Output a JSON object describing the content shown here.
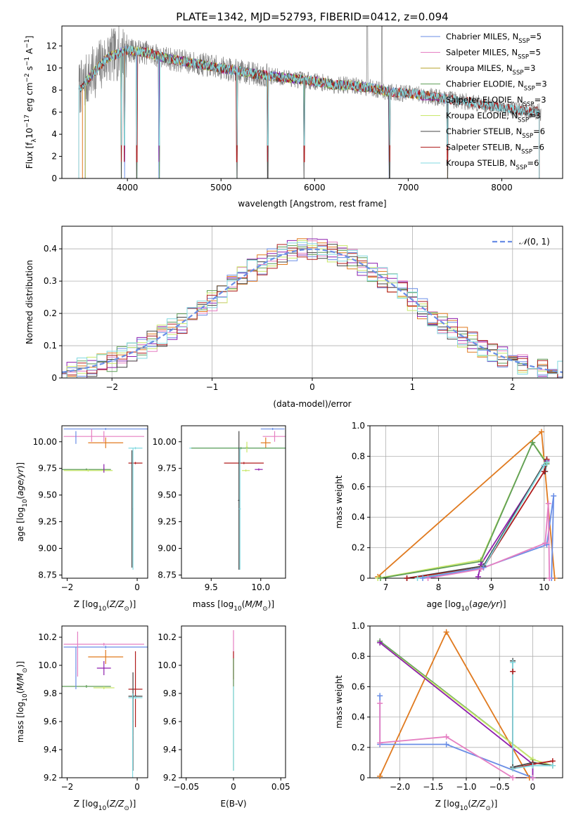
{
  "figure": {
    "title": "PLATE=1342, MJD=52793, FIBERID=0412, z=0.094"
  },
  "colors": {
    "Chabrier MILES": "#6a8ee6",
    "Salpeter MILES": "#e57fc2",
    "Kroupa MILES": "#b5a12a",
    "Chabrier ELODIE": "#5f9e58",
    "Salpeter ELODIE": "#8e1fae",
    "Kroupa ELODIE": "#c9e86a",
    "Chabrier STELIB": "#444444",
    "Salpeter STELIB": "#b01d1d",
    "Kroupa STELIB": "#82d9e0",
    "orange": "#e07a1f",
    "spectrum": "#808080"
  },
  "chart_data": [
    {
      "id": "spectrum",
      "type": "line",
      "xlabel": "wavelength [Angstrom, rest frame]",
      "ylabel": "Flux [f_λ 10^-17 erg cm^-2 s^-1 A^-1]",
      "xlim": [
        3300,
        8650
      ],
      "ylim": [
        0,
        13.8
      ],
      "xticks": [
        4000,
        5000,
        6000,
        7000,
        8000
      ],
      "yticks": [
        0,
        2,
        4,
        6,
        8,
        10,
        12
      ],
      "grid": false,
      "legend_position": "top-right",
      "legend": [
        "Chabrier MILES, N_SSP=5",
        "Salpeter MILES, N_SSP=5",
        "Kroupa MILES, N_SSP=3",
        "Chabrier ELODIE, N_SSP=3",
        "Salpeter ELODIE, N_SSP=3",
        "Kroupa ELODIE, N_SSP=3",
        "Chabrier STELIB, N_SSP=6",
        "Salpeter STELIB, N_SSP=6",
        "Kroupa STELIB, N_SSP=6"
      ],
      "continuum_x": [
        3500,
        3600,
        3700,
        3800,
        4000,
        4200,
        4400,
        4600,
        4800,
        5000,
        5200,
        5400,
        5600,
        5800,
        6000,
        6200,
        6400,
        6600,
        6800,
        7000,
        7200,
        7400,
        7600,
        7800,
        8000,
        8200,
        8400
      ],
      "continuum_y": [
        8.2,
        9.2,
        10.2,
        11.0,
        11.6,
        11.4,
        10.9,
        10.6,
        10.3,
        10.0,
        9.7,
        9.4,
        9.2,
        9.0,
        8.8,
        8.5,
        8.4,
        8.2,
        7.8,
        7.7,
        7.5,
        7.2,
        7.0,
        6.7,
        6.4,
        6.2,
        6.0
      ]
    },
    {
      "id": "residual_histogram",
      "type": "bar",
      "xlabel": "(data-model)/error",
      "ylabel": "Normed distribution",
      "xlim": [
        -2.5,
        2.5
      ],
      "ylim": [
        0,
        0.47
      ],
      "xticks": [
        -2,
        -1,
        0,
        1,
        2
      ],
      "yticks": [
        0.0,
        0.1,
        0.2,
        0.3,
        0.4
      ],
      "grid": true,
      "legend_position": "top-right",
      "gaussian_label": "N(0,1)",
      "bin_width": 0.1
    },
    {
      "id": "age_vs_Z",
      "type": "scatter",
      "xlabel": "Z [log10(Z/Z⊙)]",
      "ylabel": "age [log10(age/yr)]",
      "xlim": [
        -2.15,
        0.3
      ],
      "ylim": [
        8.72,
        10.15
      ],
      "xticks": [
        -2,
        0
      ],
      "yticks": [
        8.75,
        9.0,
        9.25,
        9.5,
        9.75,
        10.0
      ],
      "points": [
        {
          "c": "Chabrier MILES",
          "x": -0.9,
          "xe": 1.2,
          "y": 10.12,
          "ye": 0.01
        },
        {
          "c": "Salpeter MILES",
          "x": -0.95,
          "xe": 1.15,
          "y": 10.05,
          "ye": 0.05
        },
        {
          "c": "orange",
          "x": -0.9,
          "xe": 0.5,
          "y": 9.99,
          "ye": 0.05
        },
        {
          "c": "Kroupa STELIB",
          "x": -0.05,
          "xe": 0.2,
          "y": 9.94,
          "ye": 0.01
        },
        {
          "c": "Salpeter STELIB",
          "x": -0.05,
          "xe": 0.2,
          "y": 9.8,
          "ye": 0.01
        },
        {
          "c": "Chabrier ELODIE",
          "x": -1.45,
          "xe": 0.7,
          "y": 9.74,
          "ye": 0.01
        },
        {
          "c": "Kroupa ELODIE",
          "x": -1.4,
          "xe": 0.7,
          "y": 9.73,
          "ye": 0.01
        },
        {
          "c": "Chabrier STELIB",
          "x": -0.15,
          "xe": 0.01,
          "y": 9.37,
          "ye": 0.55
        },
        {
          "c": "Kroupa STELIB",
          "x": -0.12,
          "xe": 0.01,
          "y": 9.37,
          "ye": 0.57
        },
        {
          "c": "Salpeter ELODIE",
          "x": -0.95,
          "xe": 0.01,
          "y": 9.75,
          "ye": 0.04
        },
        {
          "c": "Chabrier MILES",
          "x": -1.75,
          "xe": 0.01,
          "y": 10.04,
          "ye": 0.06
        },
        {
          "c": "Salpeter MILES",
          "x": -1.3,
          "xe": 0.01,
          "y": 10.06,
          "ye": 0.06
        }
      ]
    },
    {
      "id": "age_vs_mass",
      "type": "scatter",
      "xlabel": "mass [log10(M/M⊙)]",
      "ylabel": "",
      "xlim": [
        9.2,
        10.25
      ],
      "ylim": [
        8.72,
        10.15
      ],
      "xticks": [
        9.5,
        10.0
      ],
      "yticks": [
        8.75,
        9.0,
        9.25,
        9.5,
        9.75,
        10.0
      ],
      "points": [
        {
          "c": "Chabrier MILES",
          "x": 10.12,
          "xe": 0.12,
          "y": 10.12,
          "ye": 0.01
        },
        {
          "c": "Salpeter MILES",
          "x": 10.14,
          "xe": 0.12,
          "y": 10.05,
          "ye": 0.05
        },
        {
          "c": "orange",
          "x": 10.05,
          "xe": 0.05,
          "y": 9.99,
          "ye": 0.05
        },
        {
          "c": "Kroupa STELIB",
          "x": 9.78,
          "xe": 0.5,
          "y": 9.94,
          "ye": 0.01
        },
        {
          "c": "Chabrier ELODIE",
          "x": 9.8,
          "xe": 0.5,
          "y": 9.94,
          "ye": 0.01
        },
        {
          "c": "Salpeter STELIB",
          "x": 9.83,
          "xe": 0.2,
          "y": 9.8,
          "ye": 0.01
        },
        {
          "c": "Kroupa ELODIE",
          "x": 9.85,
          "xe": 0.04,
          "y": 9.73,
          "ye": 0.01
        },
        {
          "c": "Salpeter ELODIE",
          "x": 9.98,
          "xe": 0.04,
          "y": 9.74,
          "ye": 0.01
        },
        {
          "c": "Chabrier STELIB",
          "x": 9.78,
          "xe": 0.01,
          "y": 9.45,
          "ye": 0.65
        },
        {
          "c": "Kroupa STELIB",
          "x": 9.79,
          "xe": 0.01,
          "y": 9.37,
          "ye": 0.57
        },
        {
          "c": "Kroupa ELODIE",
          "x": 9.86,
          "xe": 0.01,
          "y": 9.95,
          "ye": 0.05
        }
      ]
    },
    {
      "id": "weight_vs_age",
      "type": "line",
      "xlabel": "age [log10(age/yr)]",
      "ylabel": "mass weight",
      "xlim": [
        6.7,
        10.35
      ],
      "ylim": [
        0,
        1.0
      ],
      "xticks": [
        7,
        8,
        9,
        10
      ],
      "yticks": [
        0.0,
        0.2,
        0.4,
        0.6,
        0.8,
        1.0
      ],
      "grid": true,
      "series": [
        {
          "c": "orange",
          "x": [
            6.85,
            9.95,
            10.2
          ],
          "y": [
            0.01,
            0.96,
            0.0
          ]
        },
        {
          "c": "Kroupa ELODIE",
          "x": [
            6.85,
            8.8,
            9.78,
            10.05
          ],
          "y": [
            0.0,
            0.12,
            0.89,
            0.76
          ]
        },
        {
          "c": "Chabrier ELODIE",
          "x": [
            6.9,
            8.8,
            9.78,
            10.05
          ],
          "y": [
            0.0,
            0.11,
            0.89,
            0.75
          ]
        },
        {
          "c": "Salpeter ELODIE",
          "x": [
            8.75,
            8.8,
            10.0,
            10.05
          ],
          "y": [
            0.01,
            0.09,
            0.74,
            0.77
          ]
        },
        {
          "c": "Chabrier STELIB",
          "x": [
            7.4,
            8.85,
            10.05,
            10.02
          ],
          "y": [
            0.0,
            0.08,
            0.78,
            0.7
          ]
        },
        {
          "c": "Salpeter STELIB",
          "x": [
            7.4,
            8.85,
            10.0,
            10.05
          ],
          "y": [
            0.0,
            0.07,
            0.7,
            0.78
          ]
        },
        {
          "c": "Kroupa STELIB",
          "x": [
            7.6,
            8.85,
            10.0,
            10.05
          ],
          "y": [
            0.0,
            0.07,
            0.74,
            0.76
          ]
        },
        {
          "c": "Chabrier MILES",
          "x": [
            7.7,
            8.85,
            10.05,
            10.18,
            10.14
          ],
          "y": [
            0.0,
            0.07,
            0.22,
            0.54,
            0.0
          ]
        },
        {
          "c": "Salpeter MILES",
          "x": [
            7.8,
            8.8,
            10.02,
            10.08,
            10.1
          ],
          "y": [
            0.0,
            0.06,
            0.23,
            0.49,
            0.0
          ]
        }
      ]
    },
    {
      "id": "mass_vs_Z",
      "type": "scatter",
      "xlabel": "Z [log10(Z/Z⊙)]",
      "ylabel": "mass [log10(M/M⊙)]",
      "xlim": [
        -2.15,
        0.3
      ],
      "ylim": [
        9.2,
        10.28
      ],
      "xticks": [
        -2,
        0
      ],
      "yticks": [
        9.2,
        9.4,
        9.6,
        9.8,
        10.0,
        10.2
      ],
      "points": [
        {
          "c": "Salpeter MILES",
          "x": -0.95,
          "xe": 1.15,
          "y": 10.15,
          "ye": 0.01
        },
        {
          "c": "Chabrier MILES",
          "x": -0.9,
          "xe": 1.2,
          "y": 10.13,
          "ye": 0.01
        },
        {
          "c": "orange",
          "x": -0.9,
          "xe": 0.5,
          "y": 10.06,
          "ye": 0.05
        },
        {
          "c": "Salpeter ELODIE",
          "x": -0.95,
          "xe": 0.2,
          "y": 9.98,
          "ye": 0.05
        },
        {
          "c": "Chabrier ELODIE",
          "x": -1.45,
          "xe": 0.7,
          "y": 9.85,
          "ye": 0.01
        },
        {
          "c": "Kroupa ELODIE",
          "x": -0.95,
          "xe": 0.3,
          "y": 9.84,
          "ye": 0.01
        },
        {
          "c": "Salpeter STELIB",
          "x": -0.05,
          "xe": 0.2,
          "y": 9.83,
          "ye": 0.27
        },
        {
          "c": "Chabrier STELIB",
          "x": -0.05,
          "xe": 0.2,
          "y": 9.78,
          "ye": 0.01
        },
        {
          "c": "Kroupa STELIB",
          "x": -0.05,
          "xe": 0.2,
          "y": 9.77,
          "ye": 0.01
        },
        {
          "c": "Chabrier MILES",
          "x": -1.75,
          "xe": 0.01,
          "y": 9.98,
          "ye": 0.15
        },
        {
          "c": "Salpeter MILES",
          "x": -1.7,
          "xe": 0.01,
          "y": 10.08,
          "ye": 0.16
        },
        {
          "c": "Chabrier STELIB",
          "x": -0.12,
          "xe": 0.01,
          "y": 9.6,
          "ye": 0.35
        },
        {
          "c": "Kroupa STELIB",
          "x": -0.13,
          "xe": 0.01,
          "y": 9.5,
          "ye": 0.3
        }
      ]
    },
    {
      "id": "mass_vs_EBV",
      "type": "scatter",
      "xlabel": "E(B-V)",
      "ylabel": "",
      "xlim": [
        -0.055,
        0.055
      ],
      "ylim": [
        9.2,
        10.28
      ],
      "xticks": [
        -0.05,
        0.0,
        0.05
      ],
      "yticks": [
        9.2,
        9.4,
        9.6,
        9.8,
        10.0,
        10.2
      ],
      "points": [
        {
          "c": "Salpeter MILES",
          "x": 0.0,
          "xe": 0.0,
          "y": 10.05,
          "ye": 0.2
        },
        {
          "c": "Salpeter STELIB",
          "x": 0.0,
          "xe": 0.0,
          "y": 10.0,
          "ye": 0.1
        },
        {
          "c": "Chabrier ELODIE",
          "x": 0.0,
          "xe": 0.0,
          "y": 9.65,
          "ye": 0.4
        },
        {
          "c": "Kroupa STELIB",
          "x": 0.0,
          "xe": 0.0,
          "y": 9.55,
          "ye": 0.3
        }
      ]
    },
    {
      "id": "weight_vs_Z",
      "type": "line",
      "xlabel": "Z [log10(Z/Z⊙)]",
      "ylabel": "mass weight",
      "xlim": [
        -2.45,
        0.45
      ],
      "ylim": [
        0,
        1.0
      ],
      "xticks": [
        -2.0,
        -1.5,
        -1.0,
        -0.5,
        0.0
      ],
      "yticks": [
        0.0,
        0.2,
        0.4,
        0.6,
        0.8,
        1.0
      ],
      "grid": true,
      "series": [
        {
          "c": "orange",
          "x": [
            -2.3,
            -1.3,
            -0.05,
            0.0
          ],
          "y": [
            0.01,
            0.96,
            0.0,
            0.0
          ]
        },
        {
          "c": "Chabrier ELODIE",
          "x": [
            -2.3,
            0.0,
            0.0
          ],
          "y": [
            0.9,
            0.12,
            0.08
          ]
        },
        {
          "c": "Kroupa ELODIE",
          "x": [
            -2.3,
            0.0,
            0.3
          ],
          "y": [
            0.89,
            0.12,
            0.08
          ]
        },
        {
          "c": "Salpeter ELODIE",
          "x": [
            -2.3,
            0.0,
            0.0
          ],
          "y": [
            0.89,
            0.09,
            0.0
          ]
        },
        {
          "c": "Chabrier STELIB",
          "x": [
            -0.3,
            -0.3,
            0.0,
            0.3
          ],
          "y": [
            0.77,
            0.07,
            0.1,
            0.08
          ]
        },
        {
          "c": "Salpeter STELIB",
          "x": [
            -0.3,
            -0.3,
            0.0,
            0.3
          ],
          "y": [
            0.7,
            0.06,
            0.09,
            0.11
          ]
        },
        {
          "c": "Kroupa STELIB",
          "x": [
            -0.3,
            -0.3,
            0.0,
            0.3
          ],
          "y": [
            0.76,
            0.06,
            0.08,
            0.08
          ]
        },
        {
          "c": "Chabrier MILES",
          "x": [
            -2.3,
            -2.3,
            -1.3,
            0.0,
            0.0
          ],
          "y": [
            0.54,
            0.22,
            0.22,
            0.0,
            0.0
          ]
        },
        {
          "c": "Salpeter MILES",
          "x": [
            -2.3,
            -2.3,
            -1.3,
            -0.3,
            0.0
          ],
          "y": [
            0.49,
            0.23,
            0.27,
            0.0,
            0.0
          ]
        }
      ]
    }
  ]
}
